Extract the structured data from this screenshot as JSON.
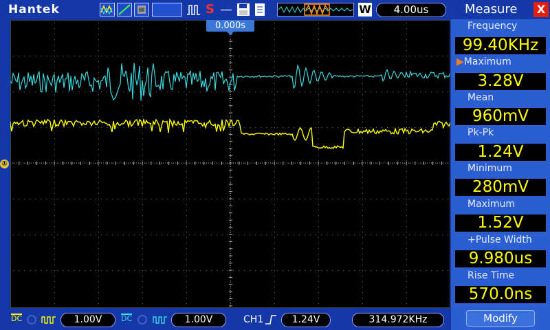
{
  "brand": "Hantek",
  "toolbar": {
    "icons": [
      "waveform-icon",
      "cursor-icon",
      "print-icon",
      "pulse-icon",
      "s-icon",
      "save-icon",
      "file-icon",
      "wave-overview-icon",
      "w-icon"
    ],
    "s_label": "S",
    "w_label": "W",
    "timebase": "4.00us"
  },
  "screen": {
    "trigger_time": "0.000s",
    "ground_marker": "①"
  },
  "waveforms": {
    "ch1_color": "#ffff00",
    "ch2_color": "#3cd8e0"
  },
  "bottom": {
    "ch1_coupling": "DC",
    "ch1_volts": "1.00V",
    "ch2_coupling": "DC",
    "ch2_volts": "1.00V",
    "trigger_source": "CH1",
    "trigger_level": "1.24V",
    "trigger_freq": "314.972KHz"
  },
  "measure": {
    "title": "Measure",
    "close": "X",
    "items": [
      {
        "label": "Frequency",
        "value": "99.40KHz"
      },
      {
        "label": "Maximum",
        "value": "3.28V",
        "selected": true
      },
      {
        "label": "Mean",
        "value": "960mV"
      },
      {
        "label": "Pk-Pk",
        "value": "1.24V"
      },
      {
        "label": "Minimum",
        "value": "280mV"
      },
      {
        "label": "Maximum",
        "value": "1.52V"
      },
      {
        "label": "+Pulse Width",
        "value": "9.980us"
      },
      {
        "label": "Rise Time",
        "value": "570.0ns"
      }
    ],
    "modify": "Modify"
  },
  "colors": {
    "bar_bg": "#1438a8",
    "panel_bg": "#2b5ed0",
    "value_text": "#ffff00"
  }
}
